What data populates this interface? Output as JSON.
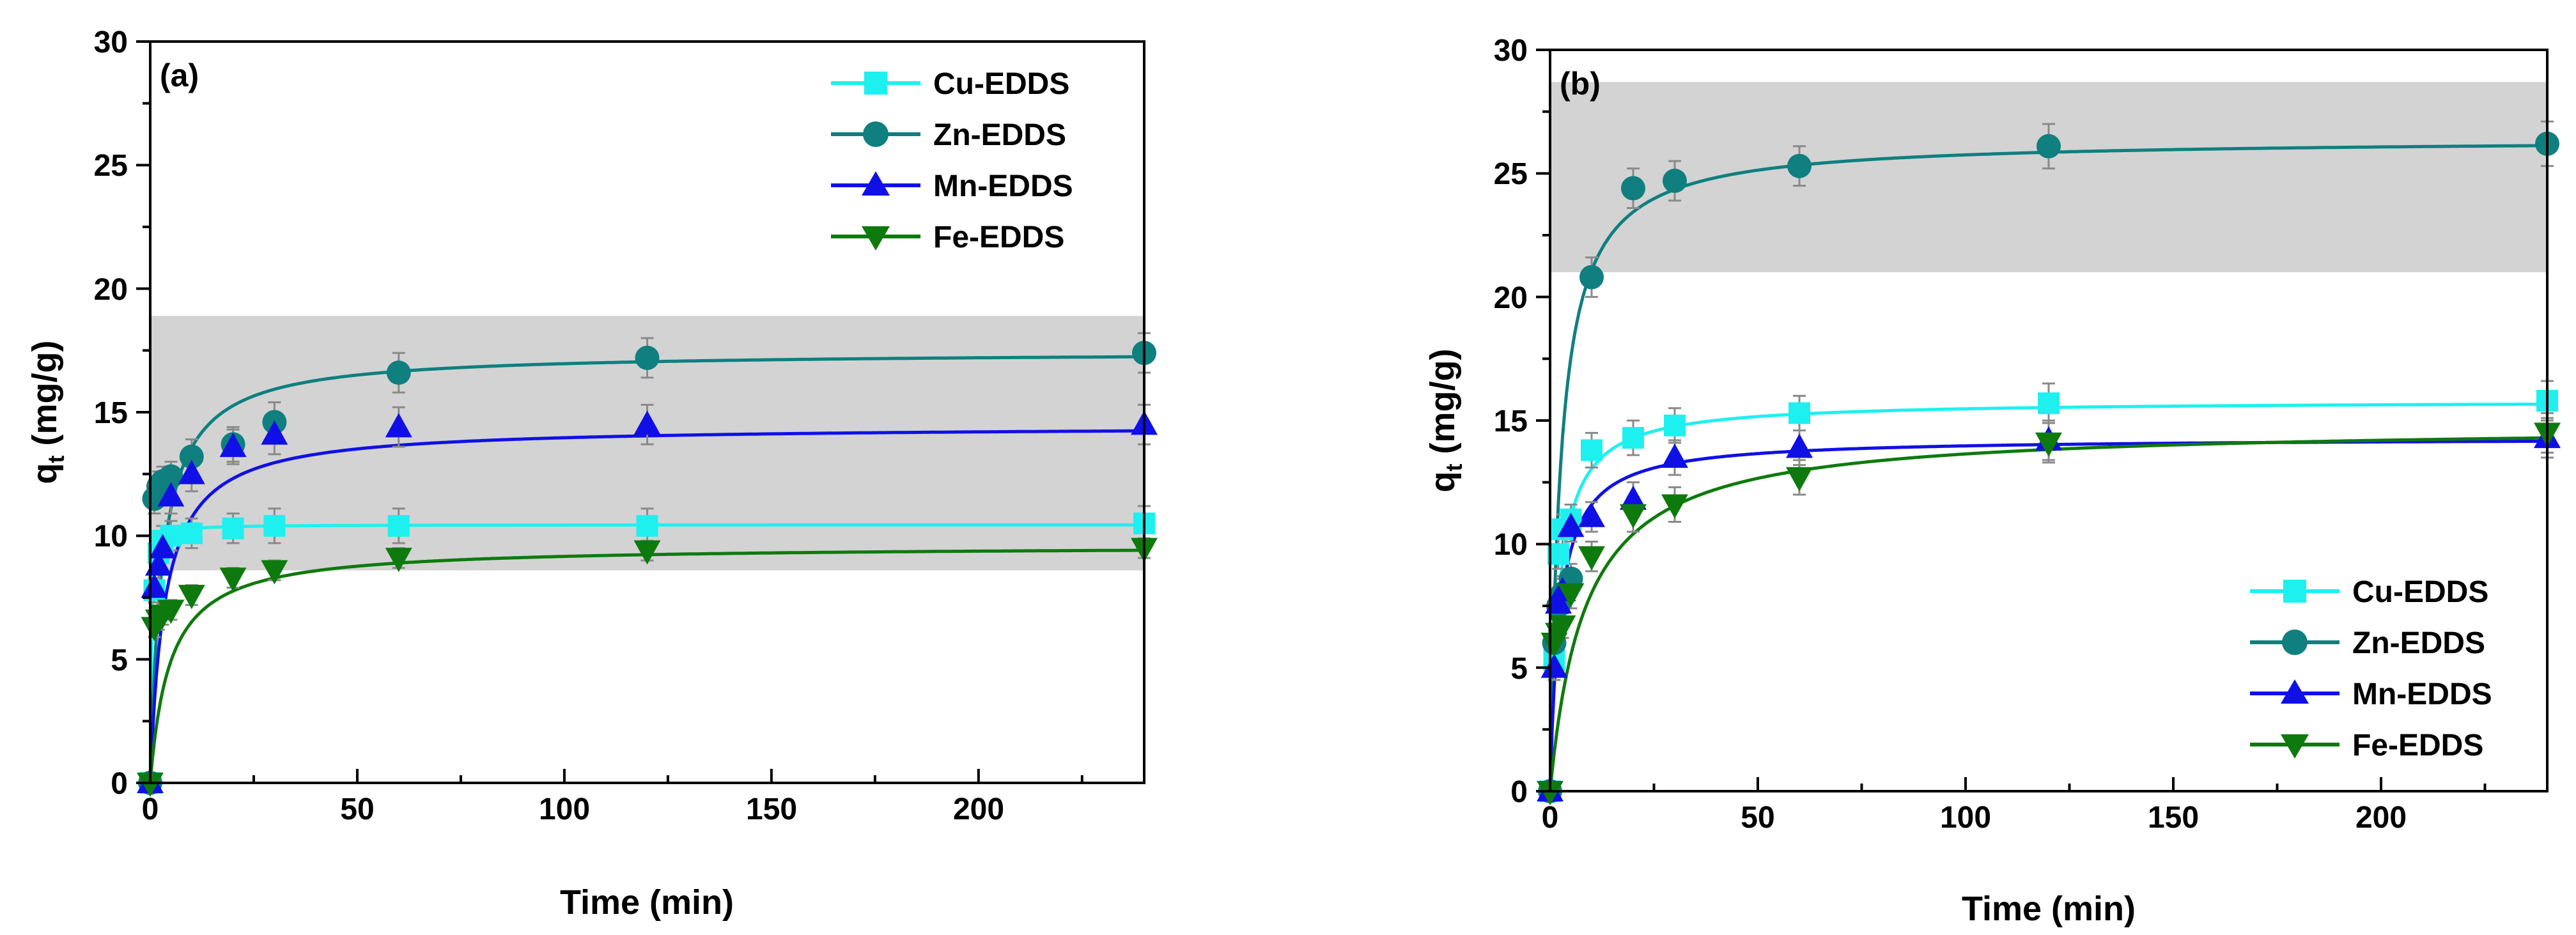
{
  "chart_data": [
    {
      "type": "line",
      "panel_label": "(a)",
      "xlabel": "Time (min)",
      "ylabel_main": "q",
      "ylabel_sub": "t",
      "ylabel_unit": " (mg/g)",
      "xlim": [
        0,
        240
      ],
      "ylim": [
        0,
        30
      ],
      "xticks": [
        0,
        50,
        100,
        150,
        200
      ],
      "yticks": [
        0,
        5,
        10,
        15,
        20,
        25,
        30
      ],
      "grid": false,
      "legend_position": "top-right",
      "shaded_band": {
        "from": 8.6,
        "to": 18.9
      },
      "series": [
        {
          "name": "Cu-EDDS",
          "color": "#1ef0f0",
          "marker": "square",
          "x": [
            0,
            1,
            2,
            3,
            5,
            10,
            20,
            30,
            60,
            120,
            240
          ],
          "y": [
            0,
            7.8,
            9.3,
            9.8,
            10.0,
            10.1,
            10.3,
            10.4,
            10.4,
            10.4,
            10.5
          ],
          "err": [
            0,
            0.5,
            0.5,
            0.6,
            0.6,
            0.6,
            0.6,
            0.7,
            0.7,
            0.7,
            0.7
          ],
          "fit": {
            "qe": 10.45,
            "k": 0.62
          }
        },
        {
          "name": "Zn-EDDS",
          "color": "#0f7f7f",
          "marker": "circle",
          "x": [
            0,
            1,
            2,
            3,
            5,
            10,
            20,
            30,
            60,
            120,
            240
          ],
          "y": [
            0,
            11.5,
            12.0,
            12.2,
            12.4,
            13.2,
            13.7,
            14.6,
            16.6,
            17.2,
            17.4
          ],
          "err": [
            0,
            0.6,
            0.6,
            0.6,
            0.6,
            0.7,
            0.7,
            0.8,
            0.8,
            0.8,
            0.8
          ],
          "fit": {
            "qe": 17.45,
            "k": 0.02
          }
        },
        {
          "name": "Mn-EDDS",
          "color": "#1010e6",
          "marker": "triangle-up",
          "x": [
            0,
            1,
            2,
            3,
            5,
            10,
            20,
            30,
            60,
            120,
            240
          ],
          "y": [
            0,
            7.9,
            8.8,
            9.5,
            11.6,
            12.5,
            13.6,
            14.1,
            14.4,
            14.5,
            14.5
          ],
          "err": [
            0,
            0.6,
            0.6,
            0.6,
            0.7,
            0.7,
            0.7,
            0.8,
            0.8,
            0.8,
            0.8
          ],
          "fit": {
            "qe": 14.45,
            "k": 0.02
          }
        },
        {
          "name": "Fe-EDDS",
          "color": "#0e7a0e",
          "marker": "triangle-down",
          "x": [
            0,
            1,
            2,
            3,
            5,
            10,
            20,
            30,
            60,
            120,
            240
          ],
          "y": [
            0,
            6.3,
            6.6,
            6.8,
            7.0,
            7.6,
            8.3,
            8.6,
            9.1,
            9.4,
            9.5
          ],
          "err": [
            0,
            0.4,
            0.4,
            0.4,
            0.4,
            0.4,
            0.4,
            0.4,
            0.4,
            0.4,
            0.4
          ],
          "fit": {
            "qe": 9.6,
            "k": 0.022
          }
        }
      ]
    },
    {
      "type": "line",
      "panel_label": "(b)",
      "xlabel": "Time (min)",
      "ylabel_main": "q",
      "ylabel_sub": "t",
      "ylabel_unit": " (mg/g)",
      "xlim": [
        0,
        240
      ],
      "ylim": [
        0,
        30
      ],
      "xticks": [
        0,
        50,
        100,
        150,
        200
      ],
      "yticks": [
        0,
        5,
        10,
        15,
        20,
        25,
        30
      ],
      "grid": false,
      "legend_position": "bottom-right",
      "shaded_band": {
        "from": 21.0,
        "to": 28.7
      },
      "series": [
        {
          "name": "Cu-EDDS",
          "color": "#1ef0f0",
          "marker": "square",
          "x": [
            0,
            1,
            2,
            3,
            5,
            10,
            20,
            30,
            60,
            120,
            240
          ],
          "y": [
            0,
            5.3,
            9.6,
            10.6,
            11.0,
            13.8,
            14.3,
            14.8,
            15.3,
            15.7,
            15.8
          ],
          "err": [
            0,
            0.5,
            0.6,
            0.6,
            0.6,
            0.7,
            0.7,
            0.7,
            0.7,
            0.8,
            0.8
          ],
          "fit": {
            "qe": 15.8,
            "k": 0.03
          }
        },
        {
          "name": "Zn-EDDS",
          "color": "#0f7f7f",
          "marker": "circle",
          "x": [
            0,
            1,
            2,
            3,
            5,
            10,
            20,
            30,
            60,
            120,
            240
          ],
          "y": [
            0,
            6.0,
            7.5,
            8.0,
            8.6,
            20.8,
            24.4,
            24.7,
            25.3,
            26.1,
            26.2
          ],
          "err": [
            0,
            0.5,
            0.5,
            0.6,
            0.6,
            0.8,
            0.8,
            0.8,
            0.8,
            0.9,
            0.9
          ],
          "fit": {
            "qe": 26.4,
            "k": 0.015
          }
        },
        {
          "name": "Mn-EDDS",
          "color": "#1010e6",
          "marker": "triangle-up",
          "x": [
            0,
            1,
            2,
            3,
            5,
            10,
            20,
            30,
            60,
            120,
            240
          ],
          "y": [
            0,
            5.0,
            7.6,
            8.1,
            10.7,
            11.1,
            11.8,
            13.5,
            13.9,
            14.2,
            14.3
          ],
          "err": [
            0,
            0.5,
            0.6,
            0.6,
            0.6,
            0.6,
            0.7,
            0.7,
            0.7,
            0.8,
            0.8
          ],
          "fit": {
            "qe": 14.3,
            "k": 0.03
          }
        },
        {
          "name": "Fe-EDDS",
          "color": "#0e7a0e",
          "marker": "triangle-down",
          "x": [
            0,
            1,
            2,
            3,
            5,
            10,
            20,
            30,
            60,
            120,
            240
          ],
          "y": [
            0,
            6.0,
            6.4,
            6.7,
            8.0,
            9.5,
            11.2,
            11.6,
            12.7,
            14.1,
            14.5
          ],
          "err": [
            0,
            0.5,
            0.5,
            0.5,
            0.6,
            0.6,
            0.7,
            0.7,
            0.7,
            0.8,
            0.8
          ],
          "fit": {
            "qe": 14.8,
            "k": 0.008
          }
        }
      ]
    }
  ]
}
